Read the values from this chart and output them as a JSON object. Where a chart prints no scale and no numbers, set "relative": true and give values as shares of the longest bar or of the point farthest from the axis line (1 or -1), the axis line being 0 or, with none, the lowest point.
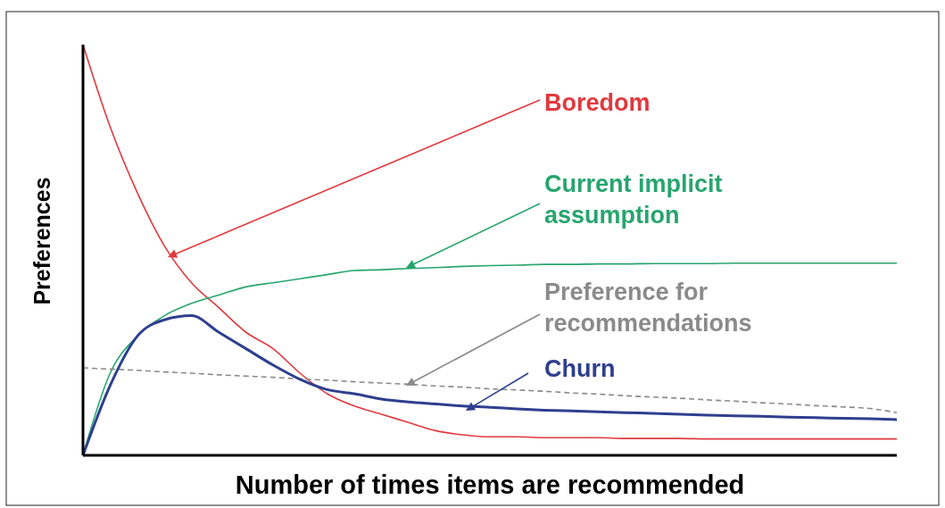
{
  "chart_data": {
    "type": "line",
    "relative": true,
    "xlabel": "Number of times items are recommended",
    "ylabel": "Preferences",
    "categories": [
      null,
      null,
      null,
      null,
      null,
      null,
      null,
      null,
      null,
      null,
      null,
      null,
      null,
      null,
      null,
      null,
      null,
      null,
      null,
      null,
      null,
      null,
      null,
      null,
      null,
      null,
      null,
      null,
      null,
      null,
      null
    ],
    "series": [
      {
        "name": "Boredom",
        "color": "#e0393e",
        "values": [
          1,
          0.8,
          0.64,
          0.51,
          0.42,
          0.36,
          0.3,
          0.26,
          0.2,
          0.15,
          0.12,
          0.1,
          0.08,
          0.06,
          0.05,
          0.045,
          0.045,
          0.043,
          0.043,
          0.043,
          0.041,
          0.041,
          0.041,
          0.04,
          0.04,
          0.04,
          0.04,
          0.04,
          0.04,
          0.04,
          0.04
        ]
      },
      {
        "name": "Current implicit assumption",
        "color": "#27a56e",
        "values": [
          0,
          0.2,
          0.29,
          0.34,
          0.37,
          0.39,
          0.41,
          0.42,
          0.43,
          0.44,
          0.45,
          0.452,
          0.455,
          0.457,
          0.46,
          0.462,
          0.463,
          0.465,
          0.465,
          0.466,
          0.466,
          0.467,
          0.467,
          0.467,
          0.468,
          0.468,
          0.468,
          0.468,
          0.468,
          0.468,
          0.468
        ]
      },
      {
        "name": "Preference for recommendations",
        "color": "#8a8a8a",
        "line_style": "dashed",
        "values": [
          0.213,
          0.21,
          0.207,
          0.203,
          0.2,
          0.196,
          0.193,
          0.19,
          0.186,
          0.183,
          0.179,
          0.176,
          0.173,
          0.169,
          0.166,
          0.162,
          0.159,
          0.156,
          0.152,
          0.149,
          0.145,
          0.142,
          0.139,
          0.135,
          0.132,
          0.128,
          0.125,
          0.121,
          0.118,
          0.114,
          0.104
        ]
      },
      {
        "name": "Churn",
        "color": "#2e3f8f",
        "values": [
          0,
          0.17,
          0.29,
          0.33,
          0.34,
          0.3,
          0.26,
          0.22,
          0.185,
          0.16,
          0.15,
          0.137,
          0.13,
          0.125,
          0.12,
          0.117,
          0.113,
          0.11,
          0.108,
          0.106,
          0.104,
          0.102,
          0.1,
          0.098,
          0.096,
          0.095,
          0.093,
          0.092,
          0.09,
          0.089,
          0.087
        ]
      }
    ]
  }
}
